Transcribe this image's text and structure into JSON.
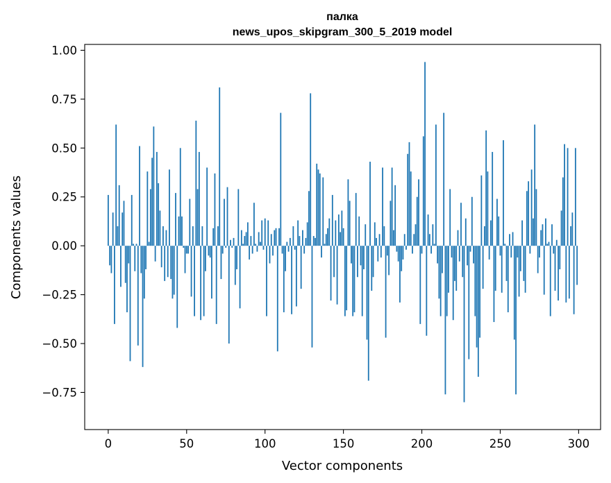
{
  "chart_data": {
    "type": "bar",
    "title": "палка",
    "subtitle": "news_upos_skipgram_300_5_2019 model",
    "xlabel": "Vector components",
    "ylabel": "Components values",
    "xlim": [
      -15,
      314
    ],
    "ylim": [
      -0.94,
      1.03
    ],
    "xticks": [
      0,
      50,
      100,
      150,
      200,
      250,
      300
    ],
    "xtick_labels": [
      "0",
      "50",
      "100",
      "150",
      "200",
      "250",
      "300"
    ],
    "yticks": [
      -0.75,
      -0.5,
      -0.25,
      0.0,
      0.25,
      0.5,
      0.75,
      1.0
    ],
    "ytick_labels": [
      "−0.75",
      "−0.50",
      "−0.25",
      "0.00",
      "0.25",
      "0.50",
      "0.75",
      "1.00"
    ],
    "bar_color": "#1f77b4",
    "grid": false,
    "values": [
      0.26,
      -0.1,
      -0.14,
      0.17,
      -0.4,
      0.62,
      0.1,
      0.31,
      -0.21,
      0.17,
      0.23,
      -0.19,
      -0.34,
      -0.09,
      -0.59,
      0.26,
      0.01,
      -0.13,
      0.01,
      -0.51,
      0.51,
      -0.14,
      -0.62,
      -0.27,
      -0.12,
      0.38,
      0.02,
      0.29,
      0.45,
      0.61,
      -0.08,
      0.48,
      0.32,
      0.18,
      -0.11,
      0.1,
      -0.18,
      0.08,
      -0.16,
      0.39,
      -0.17,
      -0.27,
      -0.25,
      0.27,
      -0.42,
      0.15,
      0.5,
      0.15,
      -0.01,
      -0.14,
      -0.04,
      -0.04,
      0.24,
      -0.26,
      0.1,
      -0.36,
      0.64,
      0.29,
      0.48,
      -0.38,
      0.1,
      -0.36,
      -0.13,
      0.4,
      -0.05,
      -0.06,
      -0.27,
      0.09,
      0.37,
      -0.4,
      0.1,
      0.81,
      -0.17,
      -0.04,
      0.24,
      -0.01,
      0.3,
      -0.5,
      0.03,
      -0.01,
      0.04,
      -0.2,
      -0.12,
      0.29,
      -0.32,
      0.08,
      0.01,
      0.05,
      0.07,
      0.12,
      -0.07,
      0.05,
      -0.04,
      0.22,
      0.01,
      -0.03,
      0.07,
      0.02,
      0.13,
      -0.02,
      0.14,
      -0.36,
      0.13,
      -0.09,
      0.06,
      -0.05,
      0.08,
      0.09,
      -0.54,
      0.09,
      0.68,
      -0.04,
      -0.34,
      -0.13,
      0.02,
      -0.03,
      0.04,
      -0.35,
      0.1,
      -0.02,
      -0.31,
      0.13,
      0.05,
      -0.22,
      0.08,
      -0.04,
      0.04,
      0.12,
      0.28,
      0.78,
      -0.52,
      0.05,
      0.04,
      0.42,
      0.39,
      0.37,
      -0.06,
      0.35,
      0.01,
      0.06,
      0.09,
      0.14,
      -0.28,
      0.26,
      -0.16,
      0.13,
      -0.3,
      0.16,
      0.07,
      0.18,
      0.09,
      -0.36,
      -0.33,
      0.34,
      0.23,
      -0.09,
      -0.36,
      -0.34,
      0.27,
      -0.16,
      0.15,
      -0.1,
      -0.36,
      -0.12,
      0.11,
      -0.48,
      -0.69,
      0.43,
      -0.23,
      -0.16,
      0.12,
      0.04,
      -0.08,
      0.06,
      -0.06,
      0.4,
      0.1,
      -0.47,
      -0.05,
      -0.15,
      0.23,
      0.4,
      0.08,
      0.31,
      -0.03,
      -0.08,
      -0.29,
      -0.13,
      -0.07,
      0.06,
      -0.02,
      0.47,
      0.53,
      0.38,
      -0.04,
      0.06,
      0.11,
      0.25,
      0.34,
      -0.4,
      -0.04,
      0.56,
      0.94,
      -0.46,
      0.16,
      0.06,
      -0.04,
      0.11,
      0.01,
      0.62,
      -0.09,
      -0.27,
      -0.36,
      -0.14,
      0.68,
      -0.76,
      -0.36,
      -0.24,
      0.29,
      -0.06,
      -0.38,
      -0.18,
      -0.23,
      0.08,
      -0.08,
      0.22,
      -0.16,
      -0.8,
      0.14,
      -0.1,
      -0.58,
      -0.03,
      0.25,
      -0.09,
      -0.36,
      -0.52,
      -0.67,
      -0.47,
      0.36,
      -0.22,
      0.1,
      0.59,
      0.38,
      -0.07,
      0.13,
      0.48,
      -0.39,
      -0.23,
      0.24,
      0.15,
      -0.05,
      -0.24,
      0.54,
      0.01,
      -0.18,
      -0.34,
      0.06,
      -0.06,
      0.07,
      -0.48,
      -0.76,
      -0.06,
      -0.26,
      -0.13,
      0.13,
      -0.18,
      -0.24,
      0.28,
      0.33,
      -0.04,
      0.39,
      0.14,
      0.62,
      0.29,
      -0.14,
      -0.06,
      0.08,
      0.11,
      -0.25,
      0.14,
      0.01,
      0.02,
      -0.36,
      0.11,
      -0.04,
      -0.23,
      0.03,
      -0.28,
      -0.12,
      0.18,
      0.35,
      0.52,
      -0.29,
      0.5,
      -0.27,
      0.1,
      0.17,
      -0.35,
      0.5,
      -0.2
    ]
  }
}
